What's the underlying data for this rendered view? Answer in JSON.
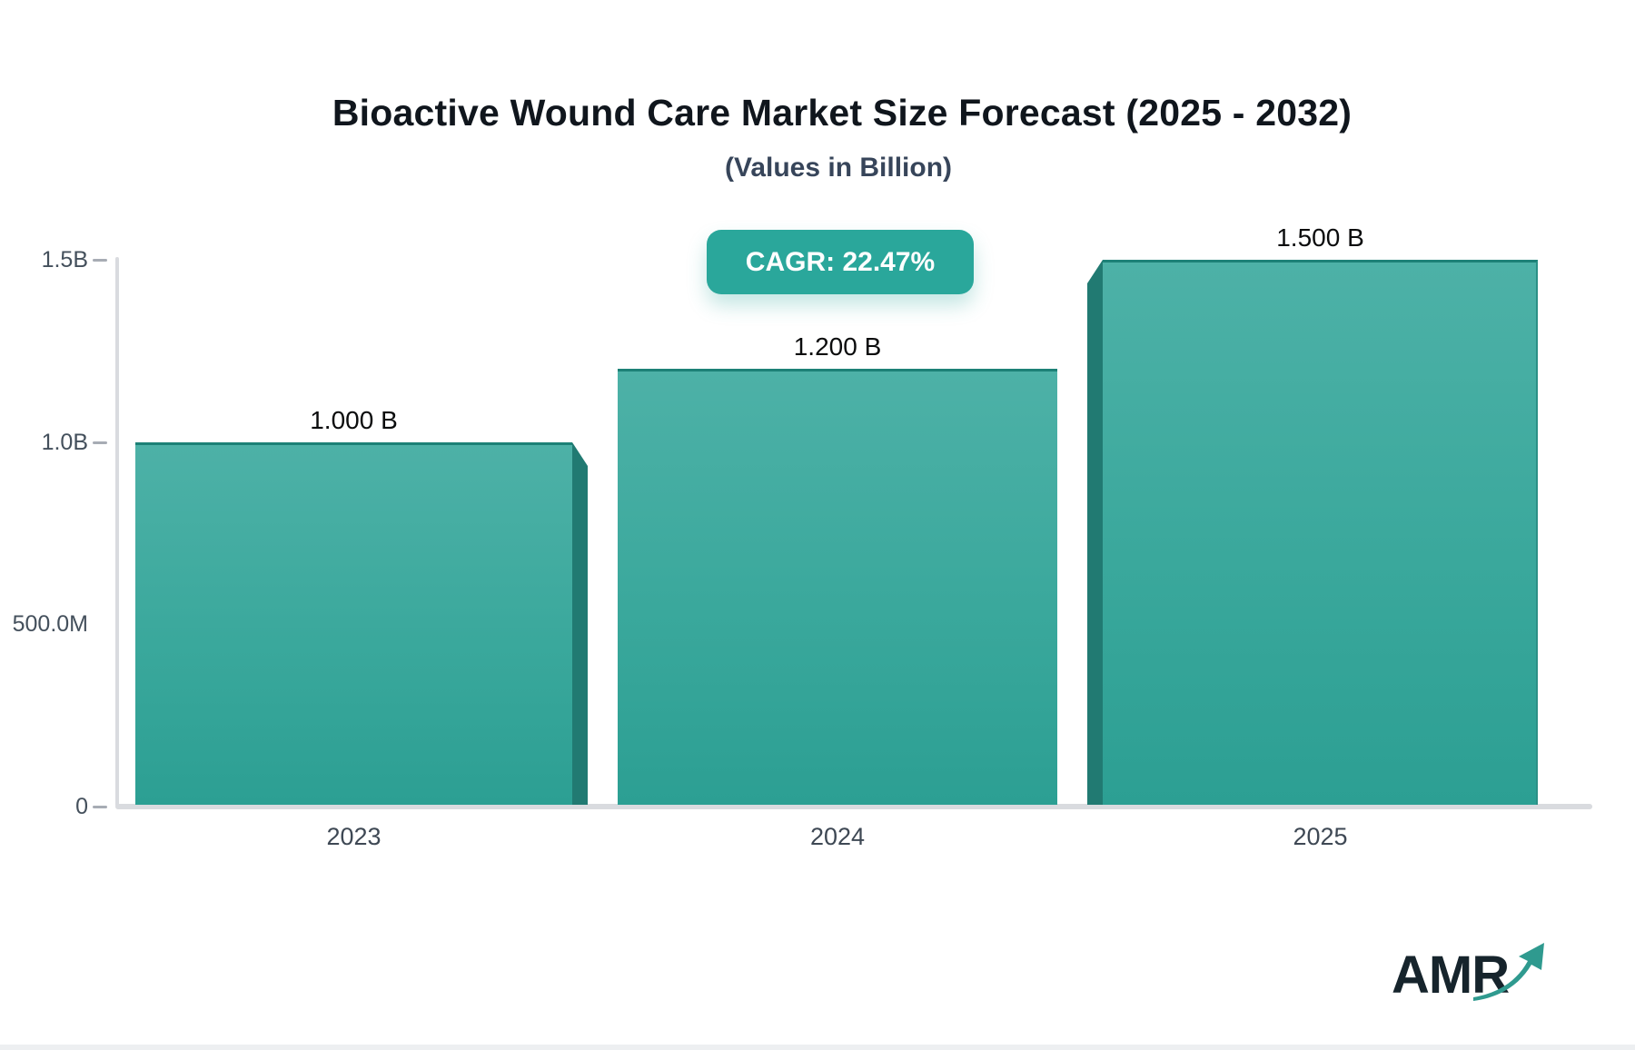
{
  "header": {
    "title": "Bioactive Wound Care Market Size Forecast (2025 - 2032)",
    "subtitle": "(Values in Billion)"
  },
  "cagr": {
    "label": "CAGR: 22.47%",
    "bg_color": "#2aa79b"
  },
  "logo": {
    "text": "AMR"
  },
  "colors": {
    "bar_gradient_top": "#4db1a7",
    "bar_gradient_bottom": "#2c9f93",
    "bar_side": "#217a72",
    "bar_top_border": "#1d8177",
    "axis": "#d9dbdf",
    "tick_dash": "#a7acb4",
    "badge": "#2aa79b",
    "title_text": "#10161d",
    "subtitle_text": "#37455a",
    "axis_label_text": "#44505c"
  },
  "chart_data": {
    "type": "bar",
    "title": "Bioactive Wound Care Market Size Forecast (2025 - 2032)",
    "subtitle": "(Values in Billion)",
    "annotation": "CAGR: 22.47%",
    "categories": [
      "2023",
      "2024",
      "2025"
    ],
    "values_billion": [
      1.0,
      1.2,
      1.5
    ],
    "value_labels": [
      "1.000 B",
      "1.200 B",
      "1.500 B"
    ],
    "xlabel": "",
    "ylabel": "",
    "ylim_billion": [
      0,
      1.5
    ],
    "ytick_values_billion": [
      0,
      0.5,
      1.0,
      1.5
    ],
    "ytick_labels": [
      "0",
      "500.0M",
      "1.0B",
      "1.5B"
    ],
    "ytick_has_dash": [
      true,
      false,
      true,
      true
    ],
    "grid": false,
    "legend": false
  }
}
